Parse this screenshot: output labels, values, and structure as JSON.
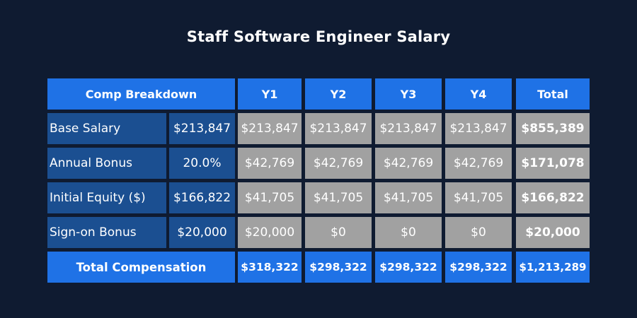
{
  "title": "Staff Software Engineer Salary",
  "chart_data": {
    "type": "table",
    "title": "Staff Software Engineer Salary",
    "header": {
      "breakdown": "Comp Breakdown",
      "years": [
        "Y1",
        "Y2",
        "Y3",
        "Y4"
      ],
      "total": "Total"
    },
    "rows": [
      {
        "label": "Base Salary",
        "input": "$213,847",
        "years": [
          "$213,847",
          "$213,847",
          "$213,847",
          "$213,847"
        ],
        "total": "$855,389"
      },
      {
        "label": "Annual Bonus",
        "input": "20.0%",
        "years": [
          "$42,769",
          "$42,769",
          "$42,769",
          "$42,769"
        ],
        "total": "$171,078"
      },
      {
        "label": "Initial Equity ($)",
        "input": "$166,822",
        "years": [
          "$41,705",
          "$41,705",
          "$41,705",
          "$41,705"
        ],
        "total": "$166,822"
      },
      {
        "label": "Sign-on Bonus",
        "input": "$20,000",
        "years": [
          "$20,000",
          "$0",
          "$0",
          "$0"
        ],
        "total": "$20,000"
      }
    ],
    "footer": {
      "label": "Total Compensation",
      "years": [
        "$318,322",
        "$298,322",
        "$298,322",
        "$298,322"
      ],
      "total": "$1,213,289"
    }
  },
  "colors": {
    "background": "#0f1b31",
    "header_blue": "#1f72e6",
    "label_navy": "#1b4f91",
    "value_gray": "#a1a1a1",
    "text": "#ffffff"
  }
}
